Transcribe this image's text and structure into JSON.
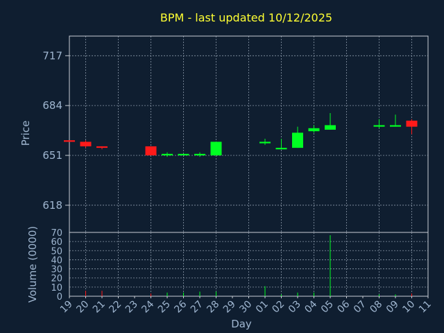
{
  "chart_data": {
    "type": "candlestick",
    "title": "BPM - last updated 10/12/2025",
    "xlabel": "Day",
    "ylabel": "Price",
    "volume_ylabel": "Volume (0000)",
    "x_ticks": [
      "19",
      "20",
      "21",
      "22",
      "23",
      "24",
      "25",
      "26",
      "27",
      "28",
      "29",
      "30",
      "01",
      "02",
      "03",
      "04",
      "05",
      "06",
      "07",
      "08",
      "09",
      "10",
      "11"
    ],
    "price_ticks": [
      618,
      651,
      684,
      717
    ],
    "price_ylim": [
      600,
      730
    ],
    "volume_ticks": [
      0,
      10,
      20,
      30,
      40,
      50,
      60,
      70
    ],
    "volume_ylim": [
      0,
      70
    ],
    "candles": [
      {
        "i": 0,
        "open": 661,
        "close": 660,
        "high": 661,
        "low": 660,
        "volume": 0
      },
      {
        "i": 1,
        "open": 660,
        "close": 657,
        "high": 661,
        "low": 656,
        "volume": 6
      },
      {
        "i": 2,
        "open": 657,
        "close": 656,
        "high": 657,
        "low": 655,
        "volume": 6
      },
      {
        "i": 5,
        "open": 657,
        "close": 651,
        "high": 657,
        "low": 651,
        "volume": 3
      },
      {
        "i": 6,
        "open": 651,
        "close": 652,
        "high": 653,
        "low": 650,
        "volume": 4
      },
      {
        "i": 7,
        "open": 651,
        "close": 652,
        "high": 652,
        "low": 651,
        "volume": 4
      },
      {
        "i": 8,
        "open": 651,
        "close": 652,
        "high": 653,
        "low": 650,
        "volume": 5
      },
      {
        "i": 9,
        "open": 651,
        "close": 660,
        "high": 660,
        "low": 651,
        "volume": 5
      },
      {
        "i": 12,
        "open": 659,
        "close": 660,
        "high": 662,
        "low": 658,
        "volume": 11
      },
      {
        "i": 13,
        "open": 655,
        "close": 656,
        "high": 662,
        "low": 655,
        "volume": 2
      },
      {
        "i": 14,
        "open": 656,
        "close": 666,
        "high": 670,
        "low": 656,
        "volume": 4
      },
      {
        "i": 15,
        "open": 667,
        "close": 669,
        "high": 671,
        "low": 666,
        "volume": 4
      },
      {
        "i": 16,
        "open": 668,
        "close": 671,
        "high": 679,
        "low": 668,
        "volume": 67
      },
      {
        "i": 19,
        "open": 670,
        "close": 671,
        "high": 675,
        "low": 669,
        "volume": 2
      },
      {
        "i": 20,
        "open": 670,
        "close": 671,
        "high": 678,
        "low": 670,
        "volume": 2
      },
      {
        "i": 21,
        "open": 674,
        "close": 670,
        "high": 675,
        "low": 665,
        "volume": 3
      }
    ],
    "colors": {
      "up": "#00ff22",
      "down": "#ff1a1a",
      "background": "#0f1e30",
      "text": "#9fb6d0",
      "title": "#ffff33"
    }
  }
}
